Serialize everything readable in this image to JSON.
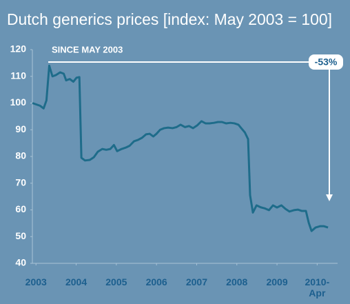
{
  "chart_data": {
    "type": "line",
    "title": "Dutch generics prices [index: May 2003 = 100]",
    "annotations": [
      "SINCE MAY 2003",
      "-53%"
    ],
    "color": "#1e6c8a",
    "x": [
      2002.91,
      2003.1,
      2003.19,
      2003.26,
      2003.33,
      2003.41,
      2003.5,
      2003.6,
      2003.69,
      2003.75,
      2003.84,
      2003.93,
      2004.01,
      2004.08,
      2004.13,
      2004.22,
      2004.34,
      2004.44,
      2004.54,
      2004.65,
      2004.75,
      2004.85,
      2004.94,
      2005.02,
      2005.13,
      2005.23,
      2005.33,
      2005.44,
      2005.54,
      2005.64,
      2005.74,
      2005.83,
      2005.92,
      2006.0,
      2006.09,
      2006.19,
      2006.29,
      2006.4,
      2006.5,
      2006.6,
      2006.71,
      2006.81,
      2006.91,
      2007.01,
      2007.12,
      2007.22,
      2007.32,
      2007.43,
      2007.53,
      2007.63,
      2007.73,
      2007.84,
      2007.94,
      2008.04,
      2008.11,
      2008.2,
      2008.28,
      2008.33,
      2008.4,
      2008.49,
      2008.59,
      2008.69,
      2008.8,
      2008.9,
      2009.0,
      2009.11,
      2009.21,
      2009.31,
      2009.42,
      2009.52,
      2009.62,
      2009.72,
      2009.79,
      2009.86,
      2009.96,
      2010.07,
      2010.17,
      2010.27
    ],
    "values": [
      100,
      99,
      98,
      101,
      114,
      110,
      110.5,
      111.5,
      111,
      108.5,
      109,
      108,
      109.5,
      109.7,
      79.5,
      78.5,
      78.7,
      79.7,
      81.8,
      82.8,
      82.5,
      82.8,
      84.3,
      82,
      82.8,
      83.3,
      84,
      85.7,
      86.2,
      87,
      88.3,
      88.5,
      87.5,
      88.5,
      90,
      90.6,
      90.8,
      90.6,
      91,
      91.9,
      91,
      91.4,
      90.6,
      91.6,
      93.2,
      92.4,
      92.4,
      92.6,
      92.9,
      92.9,
      92.4,
      92.6,
      92.4,
      91.9,
      90.6,
      89,
      86.5,
      65.5,
      59,
      61.7,
      61,
      60.6,
      59.9,
      61.7,
      60.9,
      61.7,
      60.4,
      59.4,
      59.9,
      60.1,
      59.6,
      59.6,
      55.2,
      52.1,
      53.4,
      53.9,
      53.9,
      53.4
    ],
    "xlim": [
      2002.91,
      2010.5
    ],
    "xticks": [
      2003,
      2004,
      2005,
      2006,
      2007,
      2008,
      2009,
      {
        "value": 2010,
        "label": "2010-Apr"
      }
    ],
    "ylim": [
      40,
      120
    ],
    "yticks": [
      40,
      50,
      60,
      70,
      80,
      90,
      100,
      110,
      120
    ]
  }
}
